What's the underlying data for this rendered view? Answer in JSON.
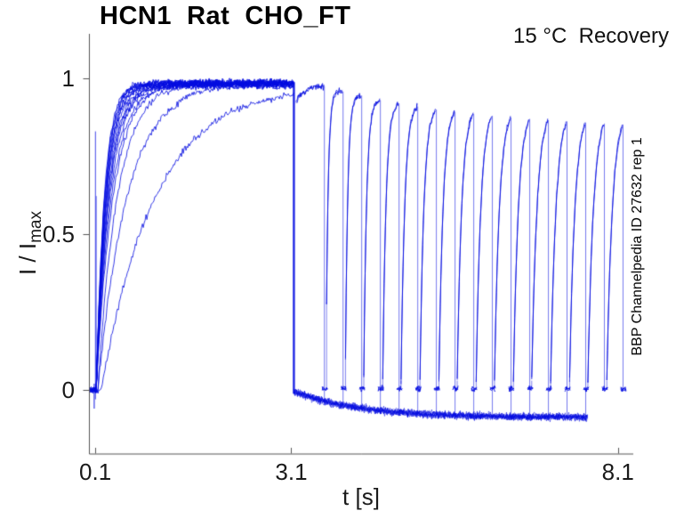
{
  "figure": {
    "title": "HCN1  Rat  CHO_FT",
    "condition": "15 °C  Recovery",
    "watermark": "BBP Channelpedia ID 27632 rep 1",
    "xlabel": "t [s]",
    "ylabel_main": "I / I",
    "ylabel_sub": "max"
  },
  "chart_data": {
    "type": "line",
    "title": "HCN1 Rat CHO_FT",
    "annotation": "15 °C Recovery",
    "side_label": "BBP Channelpedia ID 27632 rep 1",
    "xlabel": "t [s]",
    "ylabel": "I / I_max",
    "x_tick_values": [
      0.1,
      3.1,
      8.1
    ],
    "x_tick_labels": [
      "0.1",
      "3.1",
      "8.1"
    ],
    "y_tick_values": [
      0,
      0.5,
      1
    ],
    "y_tick_labels": [
      "0",
      "0.5",
      "1"
    ],
    "xlim": [
      0.003,
      8.335
    ],
    "ylim": [
      -0.204,
      1.143
    ],
    "grid": false,
    "legend": false,
    "colors": {
      "trace": "#000ae0",
      "axis": "#555555",
      "text": "#1a1a1a",
      "background": "#ffffff"
    },
    "noise_sd": 0.011,
    "conditioning_pulse": {
      "t_start": 0.1,
      "t_end": 3.14,
      "plateau": 0.973,
      "activation_taus_s": [
        0.82,
        0.45,
        0.3,
        0.26,
        0.23,
        0.21,
        0.195,
        0.185,
        0.175,
        0.165,
        0.158,
        0.152,
        0.146,
        0.14,
        0.135,
        0.13,
        0.125
      ]
    },
    "onset_artifact": {
      "t": 0.1,
      "spike_top": 0.83,
      "spike_bottom": -0.06
    },
    "interpulse_baseline": {
      "start_level": -0.005,
      "end_level": -0.088,
      "decay_tau_s": 1.0,
      "t_end": 7.64
    },
    "tail_level": 0.004,
    "recovery_pulses": [
      {
        "t_on": 3.17,
        "t_off": 3.6,
        "start": 0.925,
        "peak": 0.975,
        "shape": 0.3
      },
      {
        "t_on": 3.64,
        "t_off": 3.886,
        "start": 0.28,
        "peak": 0.958,
        "shape": 0.13
      },
      {
        "t_on": 3.93,
        "t_off": 4.171,
        "start": 0.1,
        "peak": 0.945,
        "shape": 0.15
      },
      {
        "t_on": 4.21,
        "t_off": 4.457,
        "start": 0.05,
        "peak": 0.93,
        "shape": 0.18
      },
      {
        "t_on": 4.5,
        "t_off": 4.743,
        "start": 0.035,
        "peak": 0.92,
        "shape": 0.21
      },
      {
        "t_on": 4.78,
        "t_off": 5.029,
        "start": 0.03,
        "peak": 0.91,
        "shape": 0.23
      },
      {
        "t_on": 5.07,
        "t_off": 5.314,
        "start": 0.03,
        "peak": 0.9,
        "shape": 0.25
      },
      {
        "t_on": 5.36,
        "t_off": 5.6,
        "start": 0.03,
        "peak": 0.893,
        "shape": 0.27
      },
      {
        "t_on": 5.64,
        "t_off": 5.886,
        "start": 0.03,
        "peak": 0.886,
        "shape": 0.28
      },
      {
        "t_on": 5.93,
        "t_off": 6.171,
        "start": 0.03,
        "peak": 0.88,
        "shape": 0.3
      },
      {
        "t_on": 6.21,
        "t_off": 6.457,
        "start": 0.03,
        "peak": 0.875,
        "shape": 0.31
      },
      {
        "t_on": 6.5,
        "t_off": 6.743,
        "start": 0.03,
        "peak": 0.87,
        "shape": 0.32
      },
      {
        "t_on": 6.78,
        "t_off": 7.029,
        "start": 0.03,
        "peak": 0.866,
        "shape": 0.33
      },
      {
        "t_on": 7.07,
        "t_off": 7.314,
        "start": 0.03,
        "peak": 0.862,
        "shape": 0.34
      },
      {
        "t_on": 7.36,
        "t_off": 7.6,
        "start": 0.03,
        "peak": 0.858,
        "shape": 0.34
      },
      {
        "t_on": 7.64,
        "t_off": 7.886,
        "start": 0.03,
        "peak": 0.855,
        "shape": 0.35
      },
      {
        "t_on": 7.93,
        "t_off": 8.171,
        "start": 0.03,
        "peak": 0.852,
        "shape": 0.35
      }
    ]
  }
}
